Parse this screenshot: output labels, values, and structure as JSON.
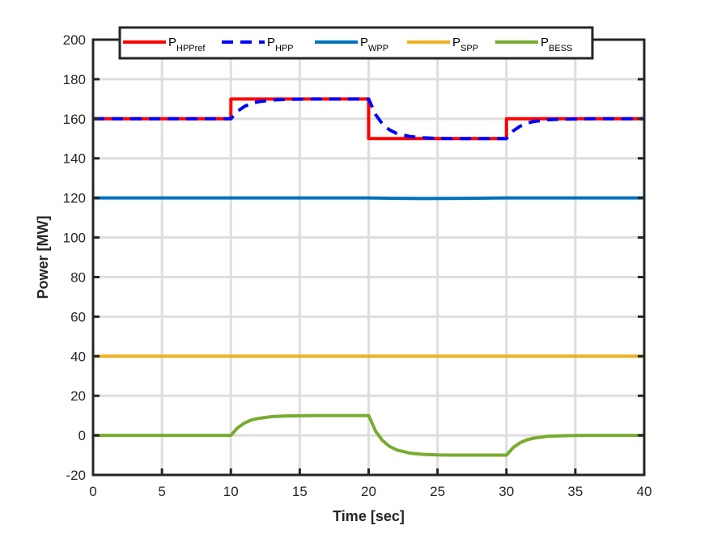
{
  "chart_data": {
    "type": "line",
    "title": "",
    "xlabel": "Time [sec]",
    "ylabel": "Power [MW]",
    "xlim": [
      0,
      40
    ],
    "ylim": [
      -20,
      200
    ],
    "xticks": [
      0,
      5,
      10,
      15,
      20,
      25,
      30,
      35,
      40
    ],
    "yticks": [
      -20,
      0,
      20,
      40,
      60,
      80,
      100,
      120,
      140,
      160,
      180,
      200
    ],
    "grid": true,
    "legend_position": "top",
    "legend_orientation": "horizontal",
    "series": [
      {
        "name": "HPPref",
        "legend_main": "P",
        "legend_sub": "HPPref",
        "color": "#ff0000",
        "style": "solid",
        "x": [
          0,
          10,
          10,
          20,
          20,
          30,
          30,
          40
        ],
        "y": [
          160,
          160,
          170,
          170,
          150,
          150,
          160,
          160
        ]
      },
      {
        "name": "HPP",
        "legend_main": "P",
        "legend_sub": "HPP",
        "color": "#0000ff",
        "style": "dashed",
        "x": [
          0,
          10,
          10.5,
          11,
          11.5,
          12,
          13,
          14,
          15,
          16,
          18,
          20,
          20.5,
          21,
          21.5,
          22,
          23,
          24,
          25,
          26,
          28,
          30,
          30.5,
          31,
          31.5,
          32,
          33,
          34,
          35,
          36,
          38,
          40
        ],
        "y": [
          160,
          160,
          163.9,
          166.3,
          167.8,
          168.6,
          169.5,
          169.8,
          169.9,
          170,
          170,
          170,
          162.2,
          157.4,
          154.5,
          152.7,
          151.0,
          150.4,
          150.1,
          150,
          150,
          150,
          153.9,
          156.3,
          157.8,
          158.6,
          159.5,
          159.8,
          159.9,
          160,
          160,
          160
        ]
      },
      {
        "name": "WPP",
        "legend_main": "P",
        "legend_sub": "WPP",
        "color": "#0072bd",
        "style": "solid",
        "x": [
          0,
          20,
          22,
          24,
          27,
          30,
          40
        ],
        "y": [
          120,
          120,
          119.8,
          119.7,
          119.8,
          120,
          120
        ]
      },
      {
        "name": "SPP",
        "legend_main": "P",
        "legend_sub": "SPP",
        "color": "#edb120",
        "style": "solid",
        "x": [
          0,
          40
        ],
        "y": [
          40,
          40
        ]
      },
      {
        "name": "BESS",
        "legend_main": "P",
        "legend_sub": "BESS",
        "color": "#77ac30",
        "style": "solid",
        "x": [
          0,
          10,
          10.5,
          11,
          11.5,
          12,
          13,
          14,
          15,
          16,
          18,
          20,
          20.5,
          21,
          21.5,
          22,
          23,
          24,
          25,
          26,
          28,
          30,
          30.5,
          31,
          31.5,
          32,
          33,
          34,
          35,
          36,
          38,
          40
        ],
        "y": [
          0,
          0,
          3.9,
          6.3,
          7.8,
          8.6,
          9.5,
          9.8,
          9.9,
          10,
          10,
          10,
          2.2,
          -2.6,
          -5.5,
          -7.3,
          -9.0,
          -9.6,
          -9.9,
          -10,
          -10,
          -10,
          -6.1,
          -3.7,
          -2.2,
          -1.4,
          -0.5,
          -0.2,
          -0.1,
          0,
          0,
          0
        ]
      }
    ]
  }
}
